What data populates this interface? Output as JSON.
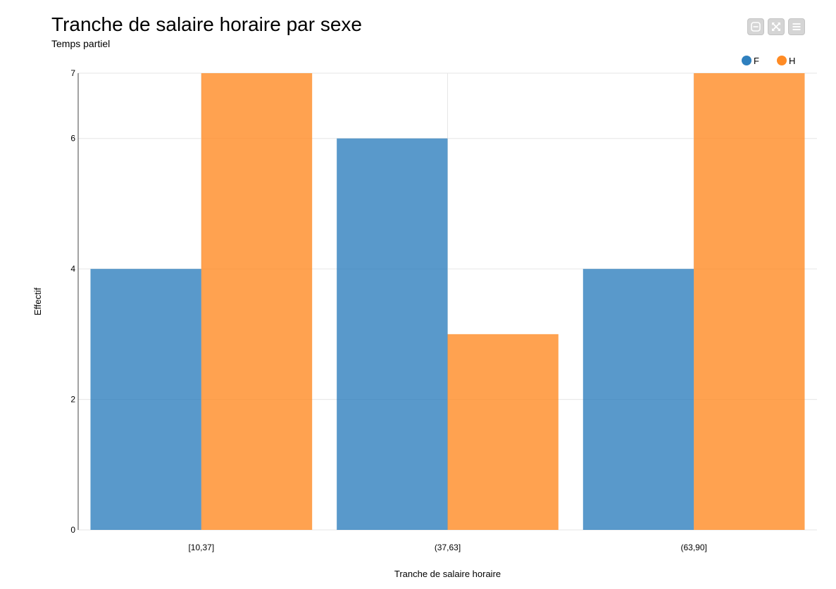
{
  "chart_data": {
    "type": "bar",
    "title": "Tranche de salaire horaire par sexe",
    "subtitle": "Temps partiel",
    "xlabel": "Tranche de salaire horaire",
    "ylabel": "Effectif",
    "categories": [
      "[10,37]",
      "(37,63]",
      "(63,90]"
    ],
    "series": [
      {
        "name": "F",
        "values": [
          4,
          6,
          4
        ],
        "color": "#2f80be"
      },
      {
        "name": "H",
        "values": [
          7,
          3,
          7
        ],
        "color": "#ff8b24"
      }
    ],
    "ylim": [
      0,
      7
    ],
    "yticks": [
      0,
      2,
      4,
      6,
      7
    ],
    "grid": true,
    "legend_position": "top-right"
  },
  "toolbar": {
    "icons": [
      "collapse-icon",
      "expand-icon",
      "menu-icon"
    ]
  }
}
